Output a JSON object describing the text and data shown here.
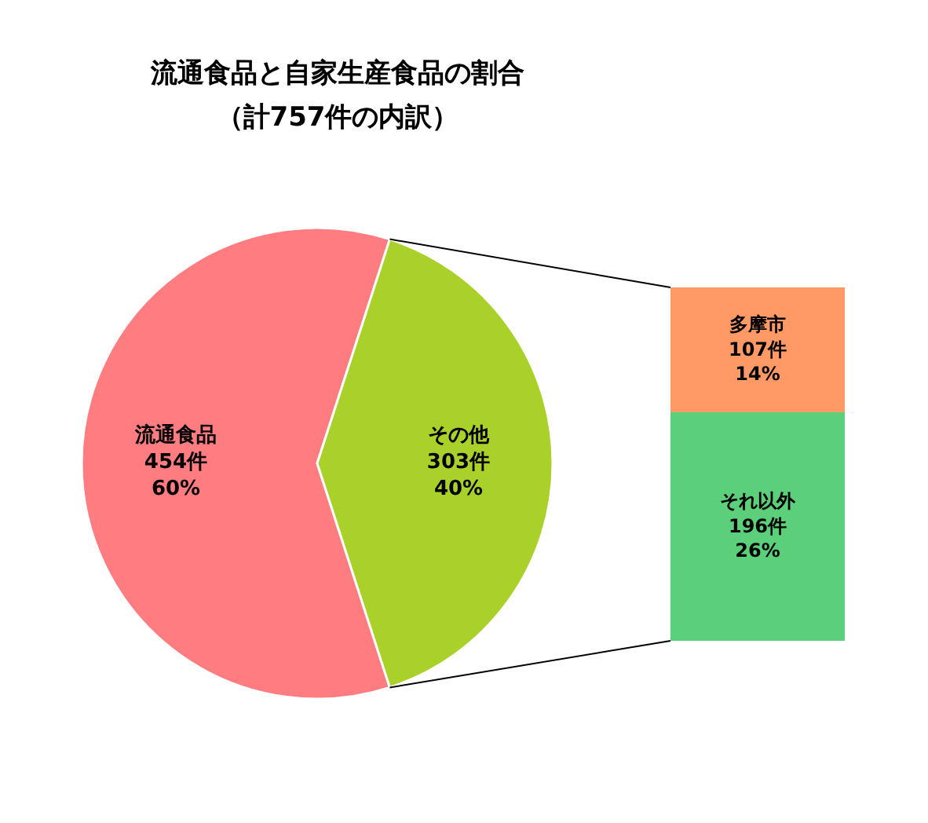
{
  "chart_data": [
    {
      "type": "pie",
      "title": "流通食品と自家生産食品の割合",
      "subtitle": "（計757件の内訳）",
      "categories": [
        "流通食品",
        "その他"
      ],
      "values": [
        454,
        303
      ],
      "colors": [
        "#ff7c80",
        "#a9d12a"
      ],
      "value_labels": [
        "454件\n60%",
        "303件\n40%"
      ]
    },
    {
      "type": "bar",
      "stacked": true,
      "categories": [
        null
      ],
      "series": [
        {
          "name": "それ以外",
          "color": "#5bcf7a",
          "values": [
            196
          ],
          "value_labels": [
            "196件\n26%"
          ]
        },
        {
          "name": "多摩市",
          "color": "#ff9966",
          "values": [
            107
          ],
          "value_labels": [
            "107件\n14%"
          ]
        }
      ]
    }
  ]
}
